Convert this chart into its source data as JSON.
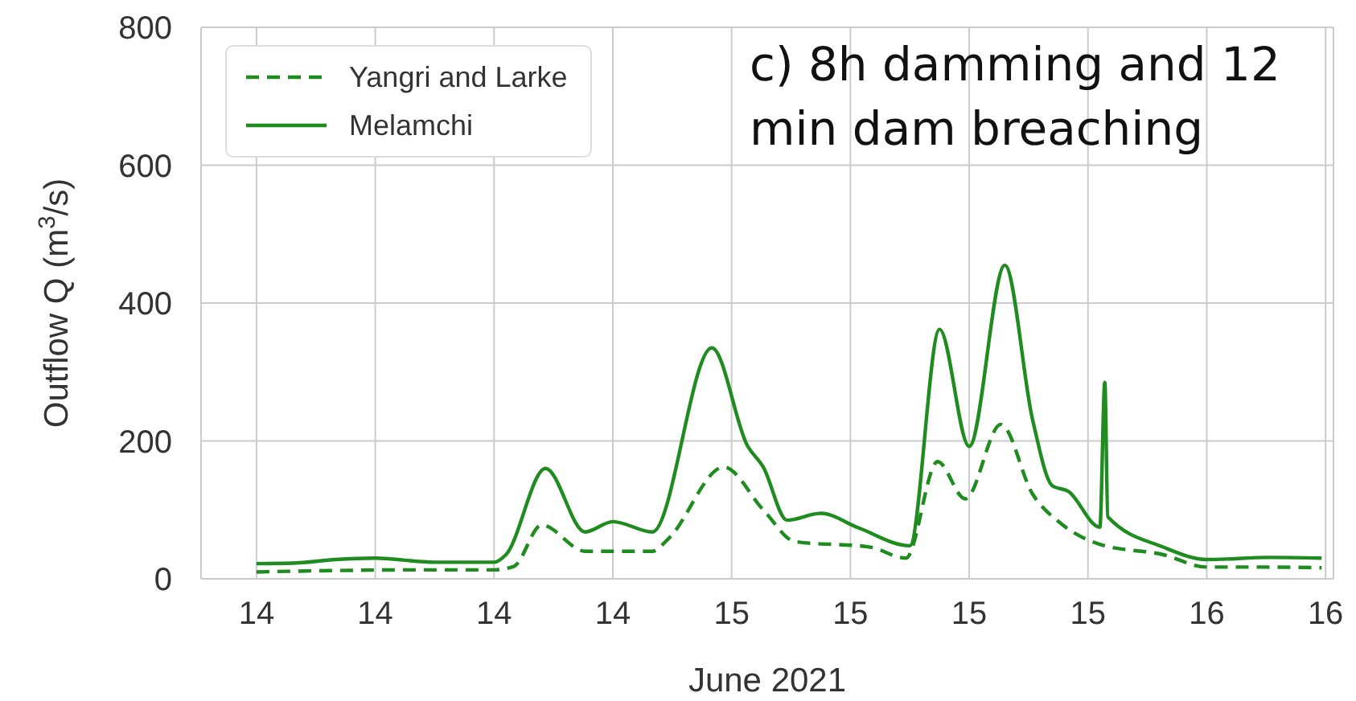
{
  "chart_data": {
    "type": "line",
    "xlabel": "June 2021",
    "ylabel": "Outflow Q (m$^{3}$/s)",
    "annotations": [
      "c) 8h damming and 12 min dam breaching"
    ],
    "xlim": [
      "2021-06-13T21:12",
      "2021-06-16T06:24"
    ],
    "ylim": [
      0,
      800
    ],
    "xticks": [
      {
        "value": "2021-06-14T00:00",
        "label": "14"
      },
      {
        "value": "2021-06-14T06:00",
        "label": "14"
      },
      {
        "value": "2021-06-14T12:00",
        "label": "14"
      },
      {
        "value": "2021-06-14T18:00",
        "label": "14"
      },
      {
        "value": "2021-06-15T00:00",
        "label": "15"
      },
      {
        "value": "2021-06-15T06:00",
        "label": "15"
      },
      {
        "value": "2021-06-15T12:00",
        "label": "15"
      },
      {
        "value": "2021-06-15T18:00",
        "label": "15"
      },
      {
        "value": "2021-06-16T00:00",
        "label": "16"
      },
      {
        "value": "2021-06-16T06:00",
        "label": "16"
      }
    ],
    "yticks": [
      0,
      200,
      400,
      600,
      800
    ],
    "grid": true,
    "legend": "top left",
    "marker": "none",
    "series": [
      {
        "name": "Yangri and Larke",
        "color": "#1e8c1e",
        "line_style": "dashed",
        "x": [
          "2021-06-14T00:00",
          "2021-06-14T04:00",
          "2021-06-14T08:00",
          "2021-06-14T12:00",
          "2021-06-14T13:00",
          "2021-06-14T14:24",
          "2021-06-14T16:36",
          "2021-06-14T20:00",
          "2021-06-14T20:48",
          "2021-06-14T23:36",
          "2021-06-15T01:36",
          "2021-06-15T03:12",
          "2021-06-15T07:00",
          "2021-06-15T08:48",
          "2021-06-15T10:24",
          "2021-06-15T11:48",
          "2021-06-15T13:36",
          "2021-06-15T15:12",
          "2021-06-15T16:36",
          "2021-06-15T18:36",
          "2021-06-15T21:48",
          "2021-06-16T00:00",
          "2021-06-16T03:00",
          "2021-06-16T05:48"
        ],
        "values": [
          10,
          12,
          13,
          13,
          18,
          78,
          40,
          40,
          58,
          162,
          100,
          54,
          46,
          30,
          170,
          116,
          224,
          123,
          81,
          50,
          35,
          17,
          17,
          16
        ]
      },
      {
        "name": "Melamchi",
        "color": "#1e8c1e",
        "line_style": "solid",
        "x": [
          "2021-06-14T00:00",
          "2021-06-14T02:00",
          "2021-06-14T04:00",
          "2021-06-14T06:00",
          "2021-06-14T09:00",
          "2021-06-14T12:00",
          "2021-06-14T12:36",
          "2021-06-14T14:36",
          "2021-06-14T16:36",
          "2021-06-14T18:00",
          "2021-06-14T20:00",
          "2021-06-14T23:00",
          "2021-06-15T00:48",
          "2021-06-15T01:36",
          "2021-06-15T02:48",
          "2021-06-15T04:30",
          "2021-06-15T06:24",
          "2021-06-15T09:00",
          "2021-06-15T10:30",
          "2021-06-15T12:00",
          "2021-06-15T13:48",
          "2021-06-15T15:12",
          "2021-06-15T16:12",
          "2021-06-15T17:00",
          "2021-06-15T18:36",
          "2021-06-15T18:51",
          "2021-06-15T19:00",
          "2021-06-15T21:48",
          "2021-06-16T00:00",
          "2021-06-16T03:12",
          "2021-06-16T05:48"
        ],
        "values": [
          22,
          23,
          28,
          30,
          24,
          24,
          35,
          160,
          68,
          83,
          68,
          335,
          193,
          162,
          85,
          95,
          74,
          48,
          362,
          192,
          455,
          231,
          135,
          127,
          75,
          285,
          90,
          46,
          28,
          31,
          30
        ]
      }
    ]
  }
}
